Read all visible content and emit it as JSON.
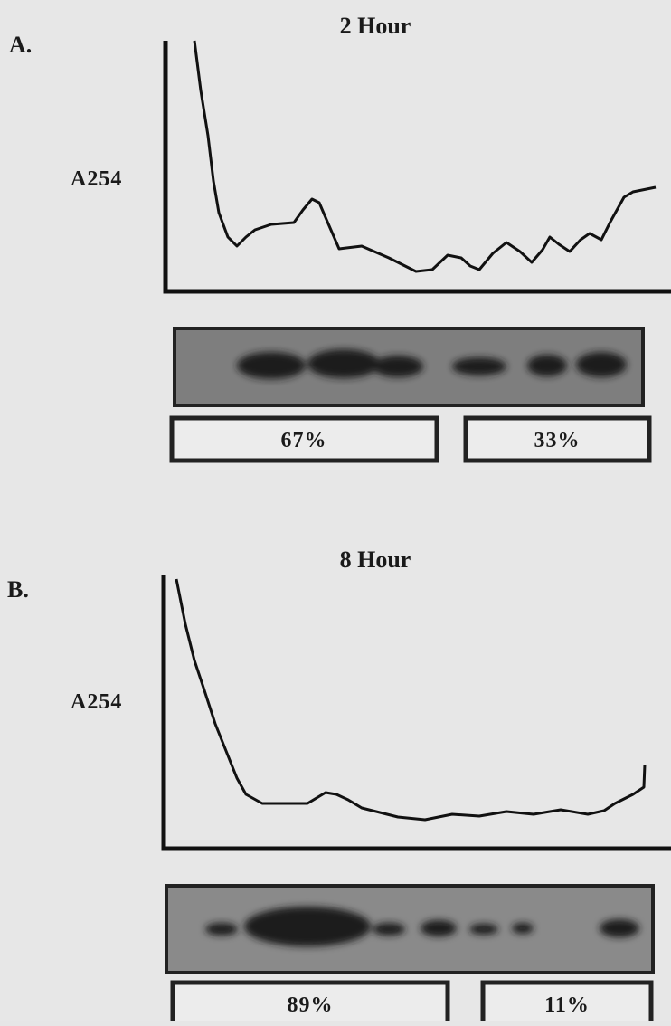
{
  "panels": [
    {
      "letter": "A.",
      "title": "2 Hour",
      "y_label": "A254",
      "fractions": [
        "67%",
        "33%"
      ]
    },
    {
      "letter": "B.",
      "title": "8 Hour",
      "y_label": "A254",
      "fractions": [
        "89%",
        "11%"
      ]
    }
  ]
}
